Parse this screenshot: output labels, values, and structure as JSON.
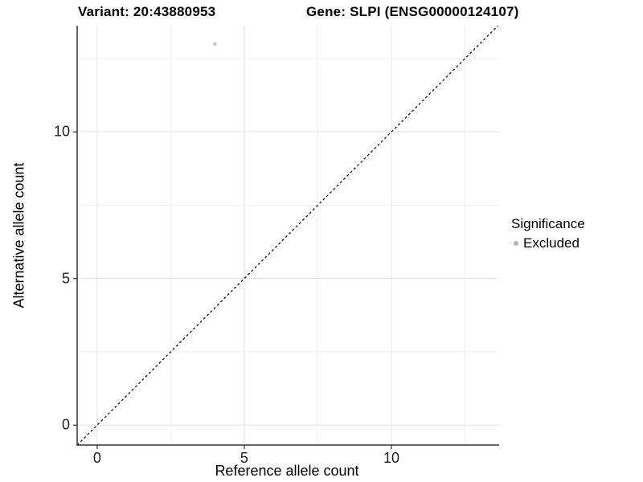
{
  "header": {
    "variant_title": "Variant: 20:43880953",
    "gene_title": "Gene: SLPI (ENSG00000124107)"
  },
  "chart_data": {
    "type": "scatter",
    "title": "Variant: 20:43880953   Gene: SLPI (ENSG00000124107)",
    "xlabel": "Reference allele count",
    "ylabel": "Alternative allele count",
    "x_ticks": [
      0,
      5,
      10
    ],
    "y_ticks": [
      0,
      5,
      10
    ],
    "x_minor_ticks": [
      2.5,
      7.5,
      12.5
    ],
    "y_minor_ticks": [
      2.5,
      7.5,
      12.5
    ],
    "xlim": [
      -0.68,
      13.66
    ],
    "ylim": [
      -0.68,
      13.62
    ],
    "grid": true,
    "points": [
      {
        "x": 4,
        "y": 13,
        "series": "Excluded"
      }
    ],
    "reference_line": {
      "kind": "identity",
      "slope": 1,
      "intercept": 0,
      "style": "dashed"
    },
    "legend": {
      "title": "Significance",
      "position": "right",
      "entries": [
        {
          "label": "Excluded",
          "color": "#b3b3b3"
        }
      ]
    },
    "colors": {
      "point_excluded": "#c3c3c3",
      "axis_line": "#333333",
      "grid_major": "#e3e3e3",
      "grid_minor": "#f0f0f0",
      "reference_line": "#000000",
      "tick_text": "#1f1f1f"
    }
  }
}
